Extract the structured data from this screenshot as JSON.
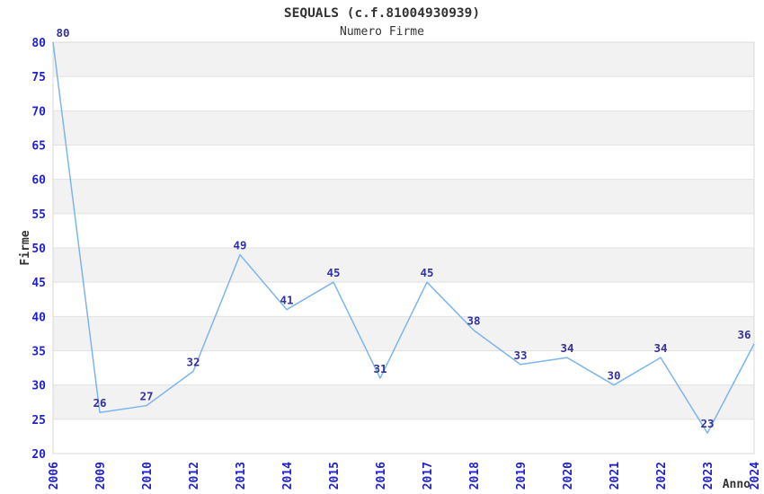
{
  "chart_data": {
    "type": "line",
    "title": "SEQUALS (c.f.81004930939)",
    "subtitle": "Numero Firme",
    "xlabel": "Anno",
    "ylabel": "Firme",
    "categories": [
      "2006",
      "2009",
      "2010",
      "2012",
      "2013",
      "2014",
      "2015",
      "2016",
      "2017",
      "2018",
      "2019",
      "2020",
      "2021",
      "2022",
      "2023",
      "2024"
    ],
    "values": [
      80,
      26,
      27,
      32,
      49,
      41,
      45,
      31,
      45,
      38,
      33,
      34,
      30,
      34,
      23,
      36
    ],
    "ylim": [
      20,
      80
    ],
    "ytick_step": 5,
    "yticks": [
      20,
      25,
      30,
      35,
      40,
      45,
      50,
      55,
      60,
      65,
      70,
      75,
      80
    ],
    "grid": true,
    "legend": false,
    "plot_bands_alternating": true,
    "data_labels_visible": true,
    "colors": {
      "line": "#7cb5ec",
      "tick_label": "#2222cc",
      "data_label": "#333399",
      "band_fill": "#f2f2f2",
      "grid_line": "#e2e2e2",
      "plot_border": "#d8d8d8",
      "text": "#333333",
      "background": "#ffffff"
    }
  }
}
